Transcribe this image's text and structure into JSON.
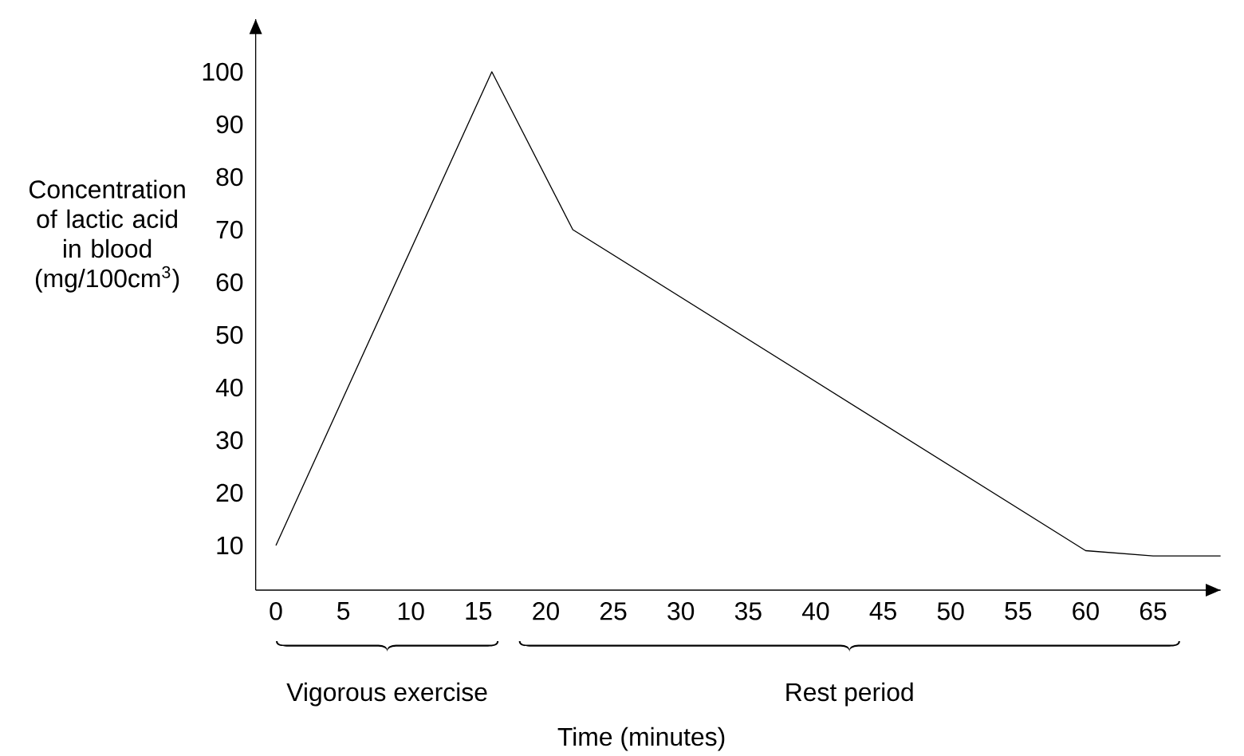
{
  "chart_data": {
    "type": "line",
    "x": [
      0,
      16,
      22,
      60,
      65,
      70
    ],
    "series": [
      {
        "color": "#000000",
        "values": [
          10,
          100,
          70,
          9,
          8,
          8
        ]
      }
    ],
    "xlim": [
      -1.5,
      70
    ],
    "ylim": [
      1.5,
      110
    ],
    "xticks": [
      0,
      5,
      10,
      15,
      20,
      25,
      30,
      35,
      40,
      45,
      50,
      55,
      60,
      65
    ],
    "yticks": [
      10,
      20,
      30,
      40,
      50,
      60,
      70,
      80,
      90,
      100
    ],
    "xlabel": "Time (minutes)",
    "ylabel": "Concentration of lactic acid in blood (mg/100cm$^{3}$)",
    "annotations": [
      "Vigorous exercise",
      "Rest period"
    ],
    "marker": "none",
    "line_style": "solid"
  }
}
